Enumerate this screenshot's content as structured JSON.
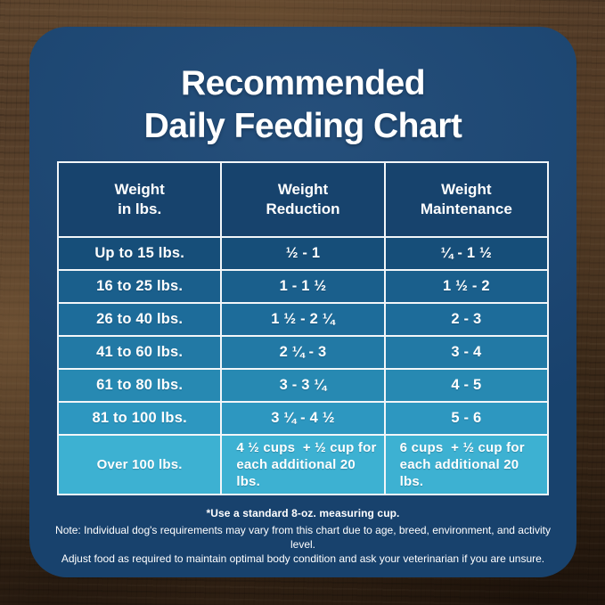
{
  "title": {
    "line1": "Recommended",
    "line2": "Daily Feeding Chart"
  },
  "chart_data": {
    "type": "table",
    "title": "Recommended Daily Feeding Chart",
    "columns": [
      "Weight in lbs.",
      "Weight Reduction",
      "Weight Maintenance"
    ],
    "rows": [
      [
        "Up to 15 lbs.",
        "½ - 1",
        "¼ - 1 ½"
      ],
      [
        "16 to 25 lbs.",
        "1 - 1 ½",
        "1 ½ - 2"
      ],
      [
        "26 to 40 lbs.",
        "1 ½ - 2 ¼",
        "2 - 3"
      ],
      [
        "41 to 60 lbs.",
        "2 ¼ - 3",
        "3 - 4"
      ],
      [
        "61 to 80 lbs.",
        "3 - 3 ¼",
        "4 - 5"
      ],
      [
        "81 to 100 lbs.",
        "3 ¼ - 4 ½",
        "5 - 6"
      ],
      [
        "Over 100 lbs.",
        "4 ½ cups  + ½ cup for each additional 20 lbs.",
        "6 cups  + ½ cup for each additional 20 lbs."
      ]
    ]
  },
  "table": {
    "display_headers": [
      "Weight\nin lbs.",
      "Weight\nReduction",
      "Weight\nMaintenance"
    ]
  },
  "footer": {
    "footnote": "*Use a standard 8-oz. measuring cup.",
    "note_line1": "Note: Individual dog's requirements may vary from this chart due to age, breed, environment, and activity level.",
    "note_line2": "Adjust food as required to maintain optimal body condition and ask your veterinarian if you are unsure."
  },
  "colors": {
    "card_background": "#1a4674",
    "header_cell_background": "#17436d",
    "table_border": "#f2f6f9",
    "text": "#ffffff",
    "row_backgrounds": [
      "#164e79",
      "#1a5f8c",
      "#1d6c9a",
      "#2279a5",
      "#2789b2",
      "#2d97c0",
      "#3db1d2"
    ]
  }
}
